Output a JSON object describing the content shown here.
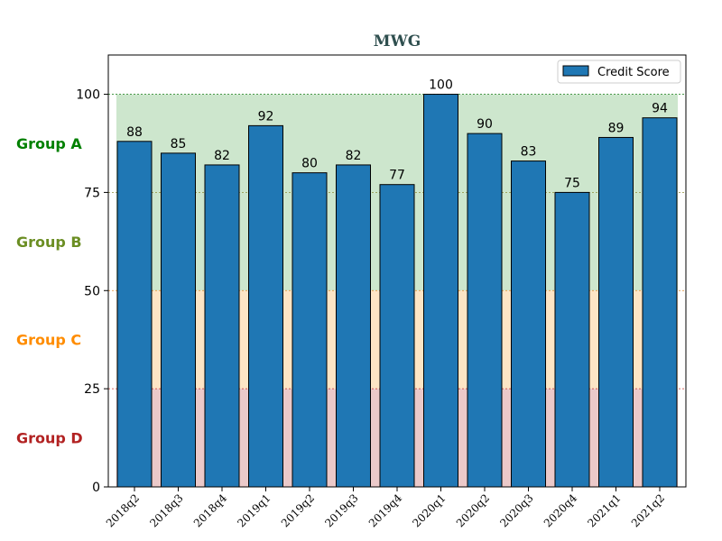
{
  "chart_data": {
    "type": "bar",
    "title": "MWG",
    "categories": [
      "2018q2",
      "2018q3",
      "2018q4",
      "2019q1",
      "2019q2",
      "2019q3",
      "2019q4",
      "2020q1",
      "2020q2",
      "2020q3",
      "2020q4",
      "2021q1",
      "2021q2"
    ],
    "series": [
      {
        "name": "Credit Score",
        "values": [
          88,
          85,
          82,
          92,
          80,
          82,
          77,
          100,
          90,
          83,
          75,
          89,
          94
        ],
        "color": "#1f77b4"
      }
    ],
    "ylim": [
      0,
      110
    ],
    "yticks": [
      0,
      25,
      50,
      75,
      100
    ],
    "ytick_labels": [
      "0",
      "25",
      "50",
      "75",
      "100"
    ],
    "xlabel": "",
    "ylabel": "",
    "legend_position": "top-right",
    "grid": false,
    "bands": [
      {
        "label": "Group A",
        "from": 75,
        "to": 100,
        "fill": "#cde6cd",
        "line": "#2e8b2e",
        "label_color": "#008000"
      },
      {
        "label": "Group B",
        "from": 50,
        "to": 75,
        "fill": "#cde6cd",
        "line": "#8f8f3a",
        "label_color": "#6b8e23"
      },
      {
        "label": "Group C",
        "from": 25,
        "to": 50,
        "fill": "#fde5c5",
        "line": "#e0892a",
        "label_color": "#ff8c00"
      },
      {
        "label": "Group D",
        "from": 0,
        "to": 25,
        "fill": "#ebc9c9",
        "line": "#c8352e",
        "label_color": "#b22222"
      }
    ]
  }
}
